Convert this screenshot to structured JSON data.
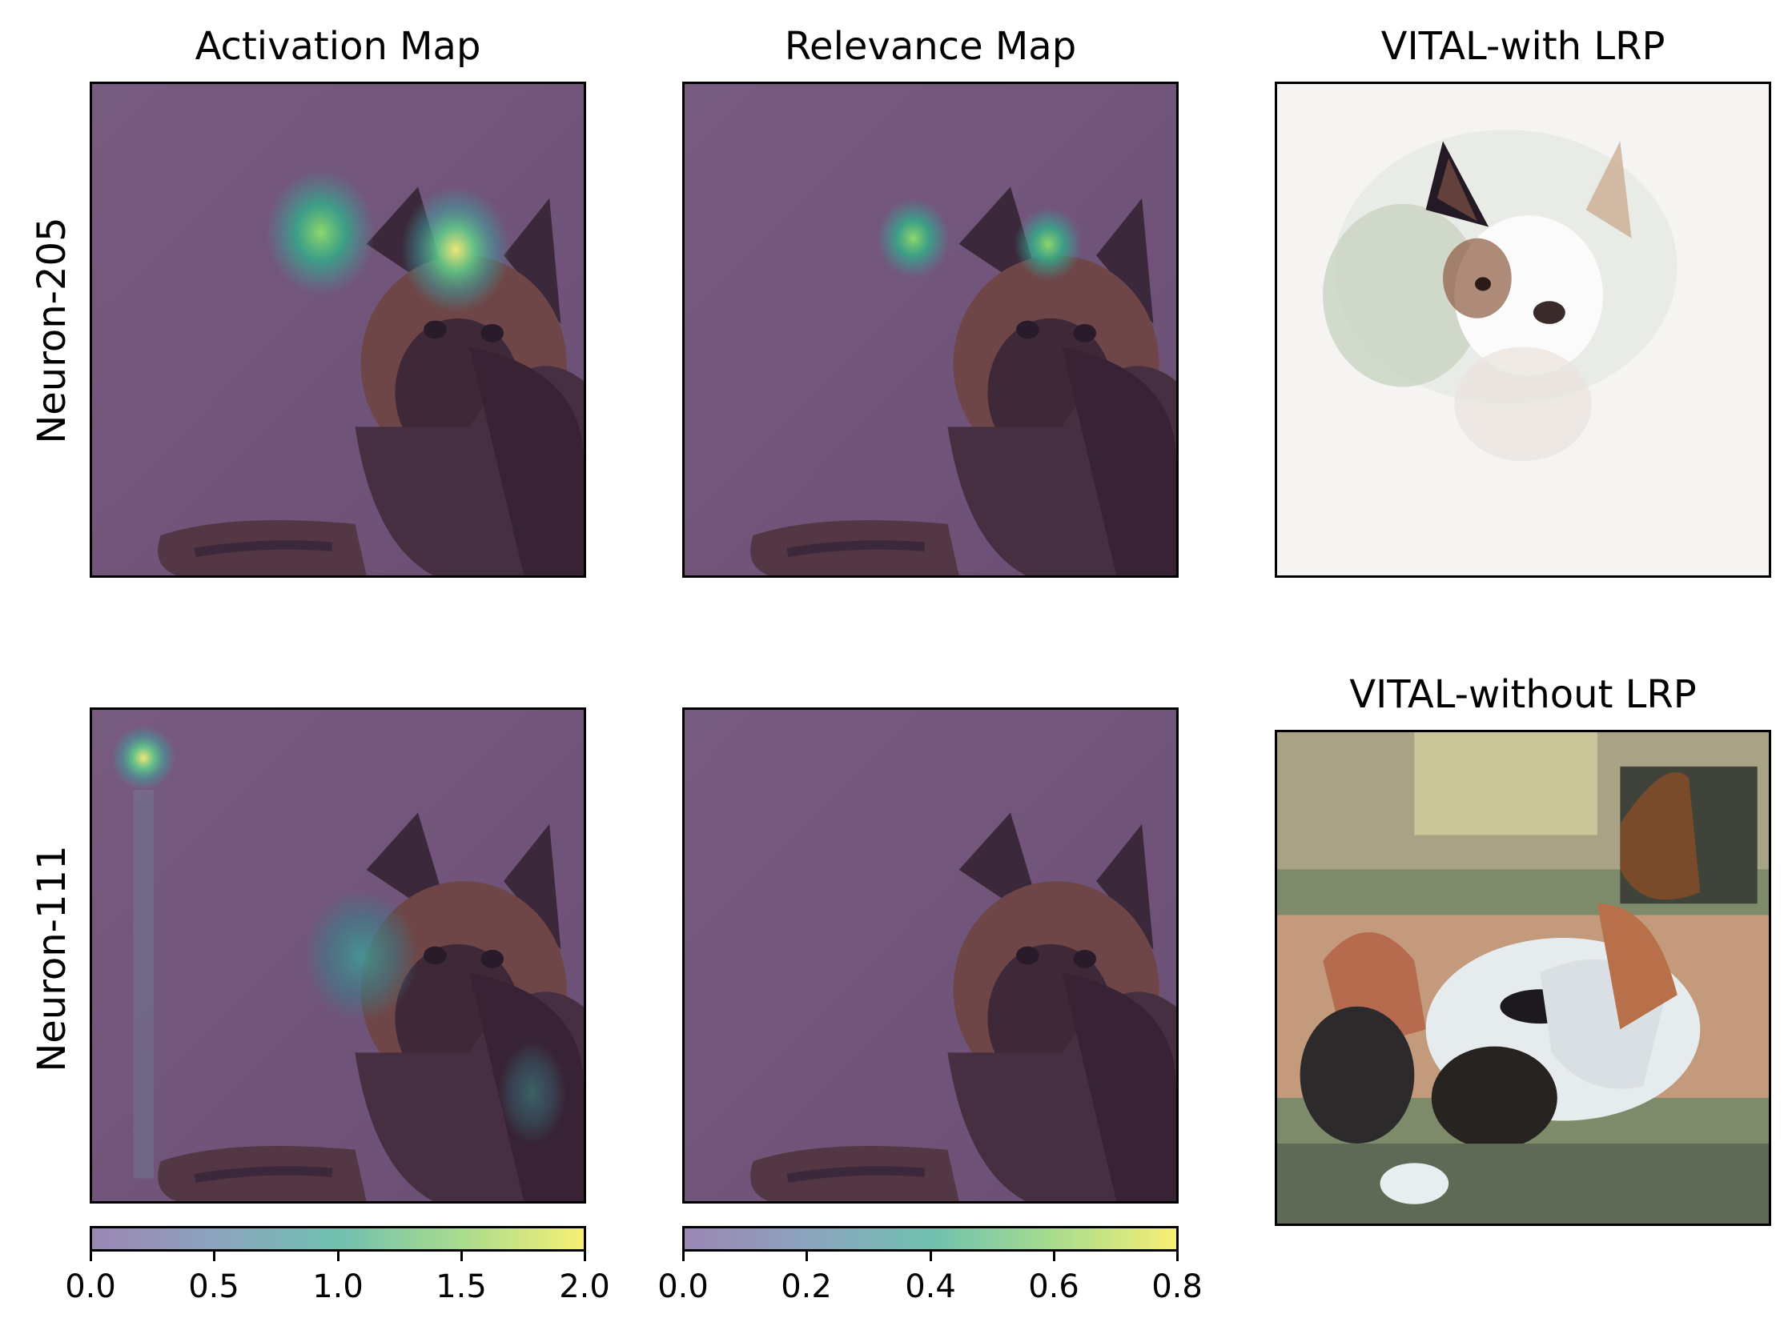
{
  "column_titles": [
    "Activation Map",
    "Relevance Map",
    "VITAL-with LRP"
  ],
  "lower_right_title": "VITAL-without LRP",
  "row_labels": [
    "Neuron-205",
    "Neuron-111"
  ],
  "colorbars": [
    {
      "name": "activation-colorbar",
      "min": 0.0,
      "max": 2.0,
      "ticks": [
        "0.0",
        "0.5",
        "1.0",
        "1.5",
        "2.0"
      ]
    },
    {
      "name": "relevance-colorbar",
      "min": 0.0,
      "max": 0.8,
      "ticks": [
        "0.0",
        "0.2",
        "0.4",
        "0.6",
        "0.8"
      ]
    }
  ],
  "colors": {
    "overlay_purple": "#6f4f78",
    "viridis_low": "#9b86b4",
    "viridis_mid": "#5fb9a4",
    "viridis_high": "#f6ef74",
    "dog_dark": "#2a1b26",
    "dog_tan": "#7a4a3e"
  }
}
